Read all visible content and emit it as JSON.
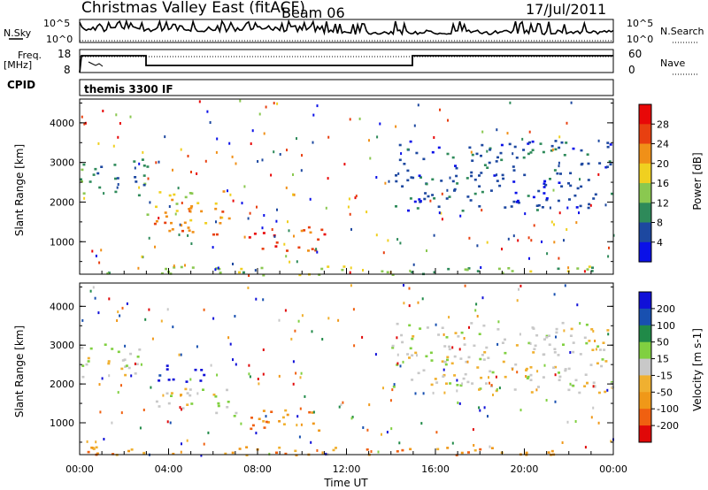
{
  "header": {
    "title": "Christmas Valley East (fitACF)",
    "beam": "Beam 06",
    "date": "17/Jul/2011"
  },
  "top_panels": {
    "nsky_label": "N.Sky",
    "nsearch_label": "N.Search",
    "noise_ticks": [
      "10^5",
      "10^0"
    ],
    "freq_label_line1": "Freq.",
    "freq_label_line2": "[MHz]",
    "freq_ticks": [
      "18",
      "8"
    ],
    "nave_label": "Nave",
    "nave_ticks": [
      "60",
      "0"
    ],
    "cpid_label": "CPID",
    "cpid_value": "themis 3300 IF"
  },
  "x_axis": {
    "label": "Time UT",
    "ticks": [
      "00:00",
      "04:00",
      "08:00",
      "12:00",
      "16:00",
      "20:00",
      "00:00"
    ]
  },
  "colors": {
    "power": [
      "#0a10e8",
      "#1d48a0",
      "#2e8a5a",
      "#8ac850",
      "#f0d020",
      "#f09018",
      "#e84010",
      "#e80808"
    ],
    "velocity": [
      "#e00808",
      "#f06010",
      "#f09818",
      "#f0b030",
      "#c8c8c8",
      "#80d040",
      "#208a48",
      "#1850b0",
      "#1010d8"
    ]
  },
  "chart_data": [
    {
      "type": "heatmap",
      "panel": "power",
      "xlabel": "Time UT",
      "ylabel": "Slant Range [km]",
      "colorbar_label": "Power [dB]",
      "colorbar_ticks": [
        "28",
        "24",
        "20",
        "16",
        "12",
        "8",
        "4"
      ],
      "xlim": [
        0,
        24
      ],
      "ylim": [
        180,
        4600
      ],
      "yticks": [
        "4000",
        "3000",
        "2000",
        "1000"
      ],
      "bands": [
        {
          "name": "early",
          "t": [
            0,
            3
          ],
          "r": [
            2200,
            3100
          ],
          "color_index": 2
        },
        {
          "name": "morning_upper",
          "t": [
            3,
            6.5
          ],
          "r": [
            1700,
            2300
          ],
          "color_index": 4
        },
        {
          "name": "morning_lower",
          "t": [
            3,
            7
          ],
          "r": [
            1200,
            1800
          ],
          "color_index": 5
        },
        {
          "name": "midday",
          "t": [
            7.5,
            11
          ],
          "r": [
            800,
            1400
          ],
          "color_index": 6
        },
        {
          "name": "afternoon",
          "t": [
            14,
            24
          ],
          "r": [
            1800,
            3600
          ],
          "color_index": 1
        },
        {
          "name": "near_range",
          "t": [
            0,
            24
          ],
          "r": [
            180,
            400
          ],
          "color_index": 3
        }
      ]
    },
    {
      "type": "heatmap",
      "panel": "velocity",
      "xlabel": "Time UT",
      "ylabel": "Slant Range [km]",
      "colorbar_label": "Velocity [m s-1]",
      "colorbar_ticks": [
        "200",
        "100",
        "50",
        "15",
        "-15",
        "-50",
        "-100",
        "-200"
      ],
      "xlim": [
        0,
        24
      ],
      "ylim": [
        180,
        4600
      ],
      "yticks": [
        "4000",
        "3000",
        "2000",
        "1000"
      ],
      "bands": [
        {
          "name": "early",
          "t": [
            0,
            3
          ],
          "r": [
            2200,
            3100
          ],
          "color_index": 4
        },
        {
          "name": "morning_upper",
          "t": [
            3.5,
            6
          ],
          "r": [
            2000,
            2500
          ],
          "color_index": 8
        },
        {
          "name": "morning_lower",
          "t": [
            3,
            7
          ],
          "r": [
            1200,
            1900
          ],
          "color_index": 4
        },
        {
          "name": "midday",
          "t": [
            7.5,
            11
          ],
          "r": [
            800,
            1400
          ],
          "color_index": 2
        },
        {
          "name": "afternoon",
          "t": [
            14,
            24
          ],
          "r": [
            1800,
            3600
          ],
          "color_index": 4
        },
        {
          "name": "near_range",
          "t": [
            0,
            24
          ],
          "r": [
            180,
            400
          ],
          "color_index": 2
        }
      ]
    }
  ]
}
